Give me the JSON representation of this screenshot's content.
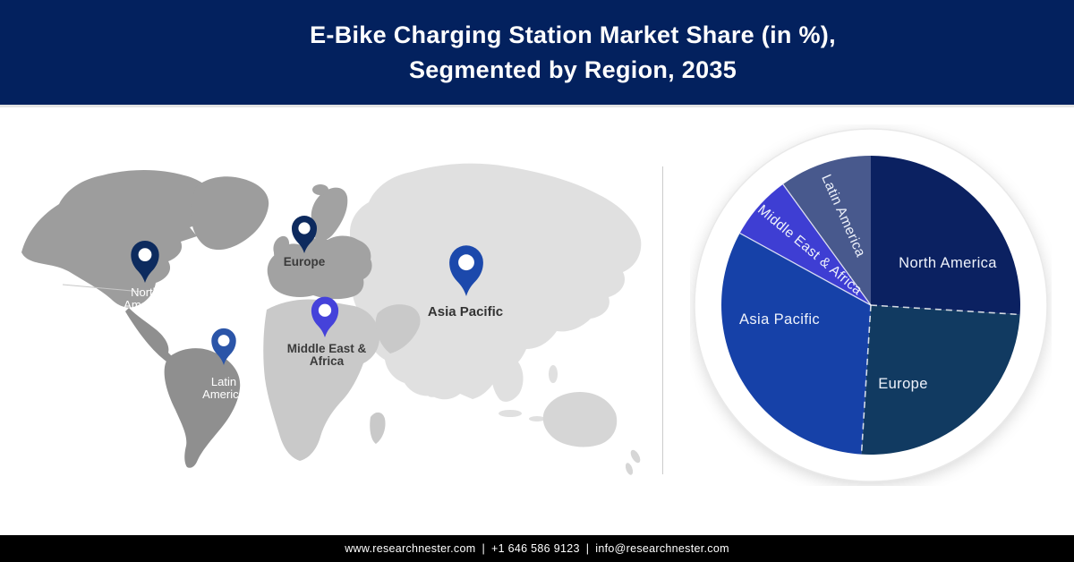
{
  "header": {
    "title_lines": [
      "E-Bike Charging Station Market Share (in %),",
      "Segmented by Region, 2035"
    ],
    "bg_color": "#03215E",
    "text_color": "#ffffff"
  },
  "map": {
    "pins": [
      {
        "id": "north-america",
        "label": "North America",
        "label_lines": [
          "North",
          "America"
        ],
        "pin_color": "#0D2B5E",
        "label_color": "#ffffff"
      },
      {
        "id": "europe",
        "label": "Europe",
        "label_lines": [
          "Europe"
        ],
        "pin_color": "#0D2A5E",
        "label_color": "#3b3b3b"
      },
      {
        "id": "latin-america",
        "label": "Latin America",
        "label_lines": [
          "Latin",
          "America"
        ],
        "pin_color": "#2B55A8",
        "label_color": "#ffffff"
      },
      {
        "id": "middle-east-africa",
        "label": "Middle East & Africa",
        "label_lines": [
          "Middle East &",
          "Africa"
        ],
        "pin_color": "#4542DA",
        "label_color": "#3b3b3b"
      },
      {
        "id": "asia-pacific",
        "label": "Asia Pacific",
        "label_lines": [
          "Asia Pacific"
        ],
        "pin_color": "#1C49AC",
        "label_color": "#333333"
      }
    ]
  },
  "chart_data": {
    "type": "pie",
    "title": "E-Bike Charging Station Market Share (in %), Segmented by Region, 2035",
    "units": "%",
    "start_angle_deg": 0,
    "direction": "clockwise",
    "labels_on_slices": true,
    "values_shown_on_chart": false,
    "legend_position": "none",
    "segments": [
      {
        "label": "North America",
        "value": 26,
        "color": "#0B2161"
      },
      {
        "label": "Europe",
        "value": 25,
        "color": "#113A61"
      },
      {
        "label": "Asia Pacific",
        "value": 32,
        "color": "#1641A8"
      },
      {
        "label": "Middle East & Africa",
        "value": 7,
        "color": "#3E3ED3"
      },
      {
        "label": "Latin America",
        "value": 10,
        "color": "#48598D"
      }
    ]
  },
  "footer": {
    "website": "www.researchnester.com",
    "phone": "+1 646 586 9123",
    "email": "info@researchnester.com",
    "separator": "|",
    "bg_color": "#000000",
    "text_color": "#ffffff"
  }
}
